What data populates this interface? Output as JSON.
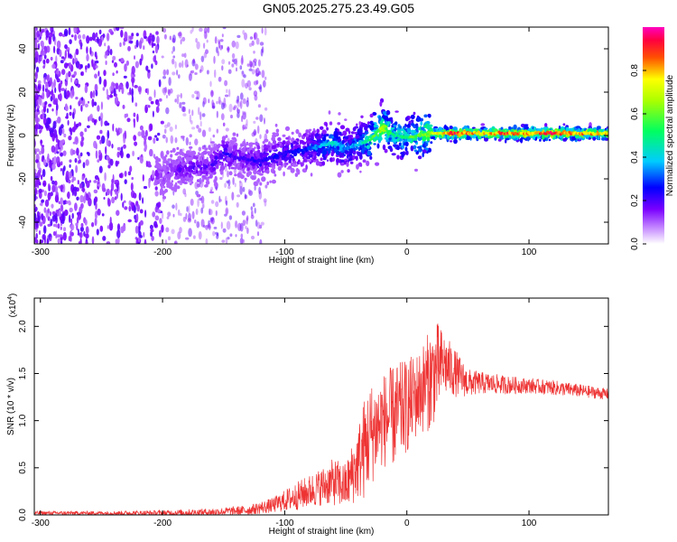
{
  "figure_title": "GN05.2025.275.23.49.G05",
  "chart_data": [
    {
      "type": "heatmap",
      "title": "GN05.2025.275.23.49.G05",
      "xlabel": "Height of straight line (km)",
      "ylabel": "Frequency (Hz)",
      "xlim": [
        -305,
        165
      ],
      "ylim": [
        -50,
        50
      ],
      "x_ticks": [
        -300,
        -200,
        -100,
        0,
        100
      ],
      "y_ticks": [
        -40,
        -20,
        0,
        20,
        40
      ],
      "colorbar": {
        "label": "Normalized spectral amplitude",
        "range": [
          0,
          1
        ],
        "ticks": [
          "0.0",
          "0.2",
          "0.4",
          "0.6",
          "0.8"
        ],
        "colormap": [
          "#ffffff",
          "#8a00ff",
          "#0000ff",
          "#00ffff",
          "#00ff00",
          "#ffff00",
          "#ff0000",
          "#ff00ff"
        ]
      },
      "ridge": {
        "x": [
          -200,
          -180,
          -160,
          -150,
          -140,
          -120,
          -100,
          -80,
          -60,
          -50,
          -40,
          -30,
          -20,
          -10,
          0,
          20,
          40,
          60,
          80,
          100,
          120,
          140,
          160
        ],
        "y": [
          -18,
          -15,
          -14,
          -8,
          -10,
          -12,
          -8,
          -6,
          -3,
          -6,
          -4,
          -2,
          4,
          0,
          -1,
          1,
          1,
          1,
          1,
          1,
          1,
          1,
          1
        ],
        "amplitude": [
          0.15,
          0.2,
          0.2,
          0.25,
          0.2,
          0.25,
          0.25,
          0.3,
          0.45,
          0.35,
          0.4,
          0.55,
          0.7,
          0.5,
          0.55,
          0.7,
          0.95,
          0.8,
          0.9,
          0.85,
          0.95,
          0.85,
          0.8
        ]
      }
    },
    {
      "type": "line",
      "xlabel": "Height of straight line (km)",
      "ylabel": "SNR (10 * v/v)",
      "y_scale_label": "(x10",
      "y_scale_exp": "4",
      "y_scale_close": ")",
      "xlim": [
        -305,
        165
      ],
      "ylim": [
        0,
        2.3
      ],
      "x_ticks": [
        -300,
        -200,
        -100,
        0,
        100
      ],
      "y_ticks": [
        "0.0",
        "0.5",
        "1.0",
        "1.5",
        "2.0"
      ],
      "y_tick_values": [
        0,
        0.5,
        1.0,
        1.5,
        2.0
      ],
      "color": "#ee3333",
      "envelope": {
        "x": [
          -305,
          -250,
          -200,
          -160,
          -130,
          -110,
          -90,
          -70,
          -60,
          -50,
          -40,
          -35,
          -30,
          -20,
          -10,
          0,
          10,
          20,
          25,
          30,
          40,
          50,
          60,
          80,
          100,
          120,
          140,
          165
        ],
        "mean": [
          0.02,
          0.02,
          0.02,
          0.03,
          0.05,
          0.1,
          0.2,
          0.3,
          0.35,
          0.3,
          0.55,
          0.7,
          0.85,
          1.0,
          1.05,
          1.15,
          1.3,
          1.45,
          1.55,
          1.6,
          1.5,
          1.4,
          1.4,
          1.38,
          1.37,
          1.35,
          1.32,
          1.28
        ],
        "spread": [
          0.02,
          0.02,
          0.03,
          0.04,
          0.05,
          0.08,
          0.15,
          0.2,
          0.25,
          0.25,
          0.4,
          0.55,
          0.55,
          0.5,
          0.55,
          0.5,
          0.45,
          0.55,
          0.5,
          0.35,
          0.25,
          0.15,
          0.12,
          0.1,
          0.08,
          0.08,
          0.07,
          0.06
        ]
      }
    }
  ]
}
